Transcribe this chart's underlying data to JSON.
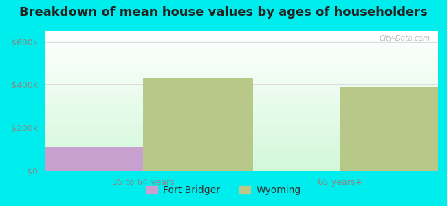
{
  "title": "Breakdown of mean house values by ages of householders",
  "categories": [
    "35 to 64 years",
    "65 years+"
  ],
  "fort_bridger_values": [
    110000,
    0
  ],
  "wyoming_values": [
    430000,
    390000
  ],
  "fort_bridger_color": "#c8a0d0",
  "wyoming_color": "#b8c888",
  "background_color": "#00eded",
  "yticks": [
    0,
    200000,
    400000,
    600000
  ],
  "ylim": [
    0,
    650000
  ],
  "watermark": "City-Data.com",
  "legend_labels": [
    "Fort Bridger",
    "Wyoming"
  ],
  "bar_width": 0.28,
  "title_fontsize": 13,
  "tick_fontsize": 9,
  "legend_fontsize": 10,
  "group_positions": [
    0.25,
    0.75
  ],
  "xlim": [
    0,
    1
  ]
}
